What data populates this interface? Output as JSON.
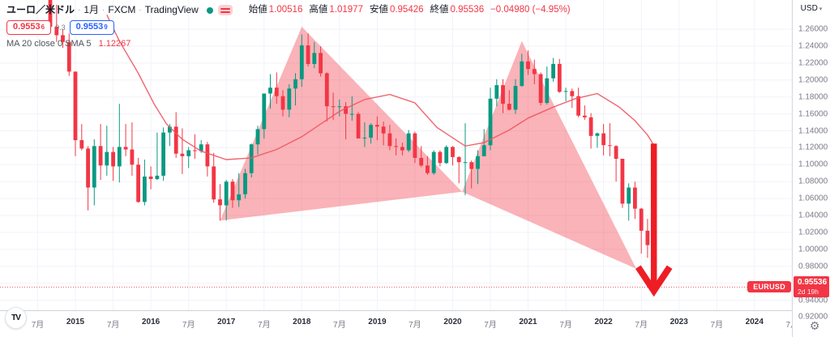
{
  "header": {
    "symbol": "ユーロ／米ドル",
    "separator": "·",
    "timeframe": "1月",
    "exchange": "FXCM",
    "brand": "TradingView",
    "ohlc": [
      {
        "label": "始値",
        "value": "1.00516"
      },
      {
        "label": "高値",
        "value": "1.01977"
      },
      {
        "label": "安値",
        "value": "0.95426"
      },
      {
        "label": "終値",
        "value": "0.95536"
      }
    ],
    "change": "−0.04980 (−4.95%)",
    "sell_price": {
      "main": "0.9553",
      "sup": "6"
    },
    "spread": "0.3",
    "buy_price": {
      "main": "0.9553",
      "sup": "9"
    },
    "indicator": {
      "label": "MA 20 close 0 SMA 5",
      "value": "1.12267"
    }
  },
  "axes": {
    "currency": "USD",
    "caret": "▾",
    "price_labels": [
      "1.26000",
      "1.24000",
      "1.22000",
      "1.20000",
      "1.18000",
      "1.16000",
      "1.14000",
      "1.12000",
      "1.10000",
      "1.08000",
      "1.06000",
      "1.04000",
      "1.02000",
      "1.00000",
      "0.98000",
      "0.96000",
      "0.94000",
      "0.92000"
    ],
    "time_labels": [
      "7月",
      "2015",
      "7月",
      "2016",
      "7月",
      "2017",
      "7月",
      "2018",
      "7月",
      "2019",
      "7月",
      "2020",
      "7月",
      "2021",
      "7月",
      "2022",
      "7月",
      "2023",
      "7月",
      "2024",
      "7月"
    ],
    "last_price_tag": {
      "price": "0.95536",
      "countdown": "2d 19h"
    },
    "price_line_symbol": "EURUSD"
  },
  "footer": {
    "logo_text": "TV",
    "gear_icon": "⚙"
  },
  "colors": {
    "up": "#089981",
    "down": "#f23645",
    "ma_line": "#f0545f",
    "triangle_fill": "rgba(242,54,69,0.38)",
    "arrow": "#ee1d24",
    "grid": "#f0f3fa",
    "axis_text": "#787b86",
    "axis_text_strong": "#2a2e39",
    "accent_blue": "#2962ff",
    "tag_bg": "#f23645"
  },
  "chart_data": {
    "type": "candlestick",
    "symbol": "EURUSD",
    "title": "ユーロ／米ドル 1月 FXCM",
    "timeframe": "1 month",
    "start_month": "2014-07",
    "ylim": [
      0.92,
      1.277
    ],
    "grid": true,
    "candles": [
      [
        "2014-07",
        1.369,
        1.371,
        1.337,
        1.339
      ],
      [
        "2014-08",
        1.339,
        1.344,
        1.311,
        1.313
      ],
      [
        "2014-09",
        1.313,
        1.317,
        1.257,
        1.263
      ],
      [
        "2014-10",
        1.263,
        1.289,
        1.245,
        1.253
      ],
      [
        "2014-11",
        1.253,
        1.26,
        1.238,
        1.245
      ],
      [
        "2014-12",
        1.245,
        1.255,
        1.205,
        1.21
      ],
      [
        "2015-01",
        1.21,
        1.21,
        1.11,
        1.129
      ],
      [
        "2015-02",
        1.129,
        1.148,
        1.117,
        1.119
      ],
      [
        "2015-03",
        1.119,
        1.122,
        1.046,
        1.073
      ],
      [
        "2015-04",
        1.073,
        1.13,
        1.052,
        1.122
      ],
      [
        "2015-05",
        1.122,
        1.148,
        1.082,
        1.099
      ],
      [
        "2015-06",
        1.099,
        1.146,
        1.087,
        1.115
      ],
      [
        "2015-07",
        1.115,
        1.121,
        1.081,
        1.098
      ],
      [
        "2015-08",
        1.098,
        1.172,
        1.079,
        1.121
      ],
      [
        "2015-09",
        1.121,
        1.148,
        1.11,
        1.118
      ],
      [
        "2015-10",
        1.118,
        1.15,
        1.087,
        1.1
      ],
      [
        "2015-11",
        1.1,
        1.108,
        1.055,
        1.056
      ],
      [
        "2015-12",
        1.056,
        1.106,
        1.052,
        1.086
      ],
      [
        "2016-01",
        1.086,
        1.098,
        1.071,
        1.083
      ],
      [
        "2016-02",
        1.083,
        1.138,
        1.082,
        1.087
      ],
      [
        "2016-03",
        1.087,
        1.144,
        1.081,
        1.138
      ],
      [
        "2016-04",
        1.138,
        1.148,
        1.122,
        1.145
      ],
      [
        "2016-05",
        1.145,
        1.162,
        1.108,
        1.113
      ],
      [
        "2016-06",
        1.113,
        1.143,
        1.089,
        1.11
      ],
      [
        "2016-07",
        1.11,
        1.121,
        1.096,
        1.117
      ],
      [
        "2016-08",
        1.117,
        1.136,
        1.107,
        1.116
      ],
      [
        "2016-09",
        1.116,
        1.129,
        1.114,
        1.124
      ],
      [
        "2016-10",
        1.124,
        1.127,
        1.086,
        1.098
      ],
      [
        "2016-11",
        1.098,
        1.114,
        1.055,
        1.059
      ],
      [
        "2016-12",
        1.059,
        1.077,
        1.034,
        1.052
      ],
      [
        "2017-01",
        1.052,
        1.082,
        1.034,
        1.08
      ],
      [
        "2017-02",
        1.08,
        1.083,
        1.049,
        1.058
      ],
      [
        "2017-03",
        1.058,
        1.09,
        1.05,
        1.065
      ],
      [
        "2017-04",
        1.065,
        1.095,
        1.06,
        1.09
      ],
      [
        "2017-05",
        1.09,
        1.125,
        1.085,
        1.124
      ],
      [
        "2017-06",
        1.124,
        1.146,
        1.112,
        1.142
      ],
      [
        "2017-07",
        1.142,
        1.184,
        1.131,
        1.184
      ],
      [
        "2017-08",
        1.184,
        1.207,
        1.166,
        1.191
      ],
      [
        "2017-09",
        1.191,
        1.209,
        1.172,
        1.181
      ],
      [
        "2017-10",
        1.181,
        1.188,
        1.157,
        1.165
      ],
      [
        "2017-11",
        1.165,
        1.195,
        1.156,
        1.19
      ],
      [
        "2017-12",
        1.19,
        1.208,
        1.17,
        1.201
      ],
      [
        "2018-01",
        1.201,
        1.254,
        1.192,
        1.241
      ],
      [
        "2018-02",
        1.241,
        1.255,
        1.216,
        1.219
      ],
      [
        "2018-03",
        1.219,
        1.245,
        1.214,
        1.232
      ],
      [
        "2018-04",
        1.232,
        1.24,
        1.204,
        1.208
      ],
      [
        "2018-05",
        1.208,
        1.209,
        1.151,
        1.169
      ],
      [
        "2018-06",
        1.169,
        1.185,
        1.153,
        1.168
      ],
      [
        "2018-07",
        1.168,
        1.177,
        1.157,
        1.169
      ],
      [
        "2018-08",
        1.169,
        1.174,
        1.13,
        1.16
      ],
      [
        "2018-09",
        1.16,
        1.181,
        1.152,
        1.16
      ],
      [
        "2018-10",
        1.16,
        1.162,
        1.131,
        1.131
      ],
      [
        "2018-11",
        1.131,
        1.15,
        1.121,
        1.132
      ],
      [
        "2018-12",
        1.132,
        1.149,
        1.125,
        1.147
      ],
      [
        "2019-01",
        1.147,
        1.157,
        1.129,
        1.145
      ],
      [
        "2019-02",
        1.145,
        1.151,
        1.123,
        1.137
      ],
      [
        "2019-03",
        1.137,
        1.147,
        1.117,
        1.122
      ],
      [
        "2019-04",
        1.122,
        1.131,
        1.111,
        1.121
      ],
      [
        "2019-05",
        1.121,
        1.126,
        1.111,
        1.117
      ],
      [
        "2019-06",
        1.117,
        1.141,
        1.115,
        1.137
      ],
      [
        "2019-07",
        1.137,
        1.139,
        1.102,
        1.108
      ],
      [
        "2019-08",
        1.108,
        1.122,
        1.097,
        1.099
      ],
      [
        "2019-09",
        1.099,
        1.11,
        1.088,
        1.09
      ],
      [
        "2019-10",
        1.09,
        1.117,
        1.088,
        1.115
      ],
      [
        "2019-11",
        1.115,
        1.117,
        1.098,
        1.102
      ],
      [
        "2019-12",
        1.102,
        1.123,
        1.101,
        1.121
      ],
      [
        "2020-01",
        1.121,
        1.122,
        1.099,
        1.109
      ],
      [
        "2020-02",
        1.109,
        1.11,
        1.078,
        1.103
      ],
      [
        "2020-03",
        1.103,
        1.149,
        1.064,
        1.103
      ],
      [
        "2020-04",
        1.103,
        1.105,
        1.072,
        1.095
      ],
      [
        "2020-05",
        1.095,
        1.117,
        1.077,
        1.11
      ],
      [
        "2020-06",
        1.11,
        1.142,
        1.11,
        1.123
      ],
      [
        "2020-07",
        1.123,
        1.191,
        1.117,
        1.178
      ],
      [
        "2020-08",
        1.178,
        1.201,
        1.169,
        1.194
      ],
      [
        "2020-09",
        1.194,
        1.201,
        1.161,
        1.172
      ],
      [
        "2020-10",
        1.172,
        1.188,
        1.164,
        1.165
      ],
      [
        "2020-11",
        1.165,
        1.201,
        1.16,
        1.193
      ],
      [
        "2020-12",
        1.193,
        1.231,
        1.192,
        1.222
      ],
      [
        "2021-01",
        1.222,
        1.235,
        1.206,
        1.213
      ],
      [
        "2021-02",
        1.213,
        1.224,
        1.195,
        1.207
      ],
      [
        "2021-03",
        1.207,
        1.209,
        1.17,
        1.173
      ],
      [
        "2021-04",
        1.173,
        1.216,
        1.171,
        1.202
      ],
      [
        "2021-05",
        1.202,
        1.226,
        1.198,
        1.219
      ],
      [
        "2021-06",
        1.219,
        1.225,
        1.185,
        1.186
      ],
      [
        "2021-07",
        1.186,
        1.191,
        1.175,
        1.187
      ],
      [
        "2021-08",
        1.187,
        1.19,
        1.167,
        1.181
      ],
      [
        "2021-09",
        1.181,
        1.191,
        1.156,
        1.158
      ],
      [
        "2021-10",
        1.158,
        1.17,
        1.153,
        1.156
      ],
      [
        "2021-11",
        1.156,
        1.161,
        1.119,
        1.134
      ],
      [
        "2021-12",
        1.134,
        1.138,
        1.12,
        1.137
      ],
      [
        "2022-01",
        1.137,
        1.148,
        1.111,
        1.123
      ],
      [
        "2022-02",
        1.123,
        1.149,
        1.11,
        1.122
      ],
      [
        "2022-03",
        1.122,
        1.123,
        1.08,
        1.107
      ],
      [
        "2022-04",
        1.107,
        1.107,
        1.049,
        1.054
      ],
      [
        "2022-05",
        1.054,
        1.078,
        1.034,
        1.073
      ],
      [
        "2022-06",
        1.073,
        1.08,
        1.036,
        1.048
      ],
      [
        "2022-07",
        1.048,
        1.049,
        0.995,
        1.022
      ],
      [
        "2022-08",
        1.022,
        1.036,
        0.99,
        1.005
      ],
      [
        "2022-09",
        1.00516,
        1.01977,
        0.95426,
        0.95536
      ]
    ],
    "ma_line_points": [
      [
        11,
        1.277
      ],
      [
        13,
        1.246
      ],
      [
        16,
        1.208
      ],
      [
        18.5,
        1.172
      ],
      [
        20.5,
        1.148
      ],
      [
        23,
        1.13
      ],
      [
        26,
        1.116
      ],
      [
        30,
        1.106
      ],
      [
        34,
        1.108
      ],
      [
        38,
        1.118
      ],
      [
        42,
        1.133
      ],
      [
        45,
        1.148
      ],
      [
        48,
        1.163
      ],
      [
        52,
        1.177
      ],
      [
        56,
        1.183
      ],
      [
        60,
        1.173
      ],
      [
        63.5,
        1.144
      ],
      [
        68,
        1.122
      ],
      [
        71,
        1.126
      ],
      [
        75,
        1.141
      ],
      [
        78,
        1.155
      ],
      [
        82,
        1.168
      ],
      [
        85.5,
        1.178
      ],
      [
        89,
        1.184
      ],
      [
        92.5,
        1.168
      ],
      [
        95,
        1.152
      ],
      [
        97,
        1.135
      ],
      [
        98,
        1.123
      ]
    ],
    "annotations": {
      "triangles": [
        {
          "points_idx_price": [
            [
              29,
              1.034
            ],
            [
              42,
              1.263
            ],
            [
              67.5,
              1.068
            ]
          ]
        },
        {
          "points_idx_price": [
            [
              67.5,
              1.068
            ],
            [
              77,
              1.246
            ],
            [
              95.2,
              0.977
            ]
          ]
        }
      ],
      "arrow": {
        "idx": 98,
        "price_top": 1.125,
        "price_tip": 0.951,
        "price_barb": 0.979,
        "barb_halfwidth_idx": 2.5
      },
      "price_line": 0.95536
    }
  }
}
